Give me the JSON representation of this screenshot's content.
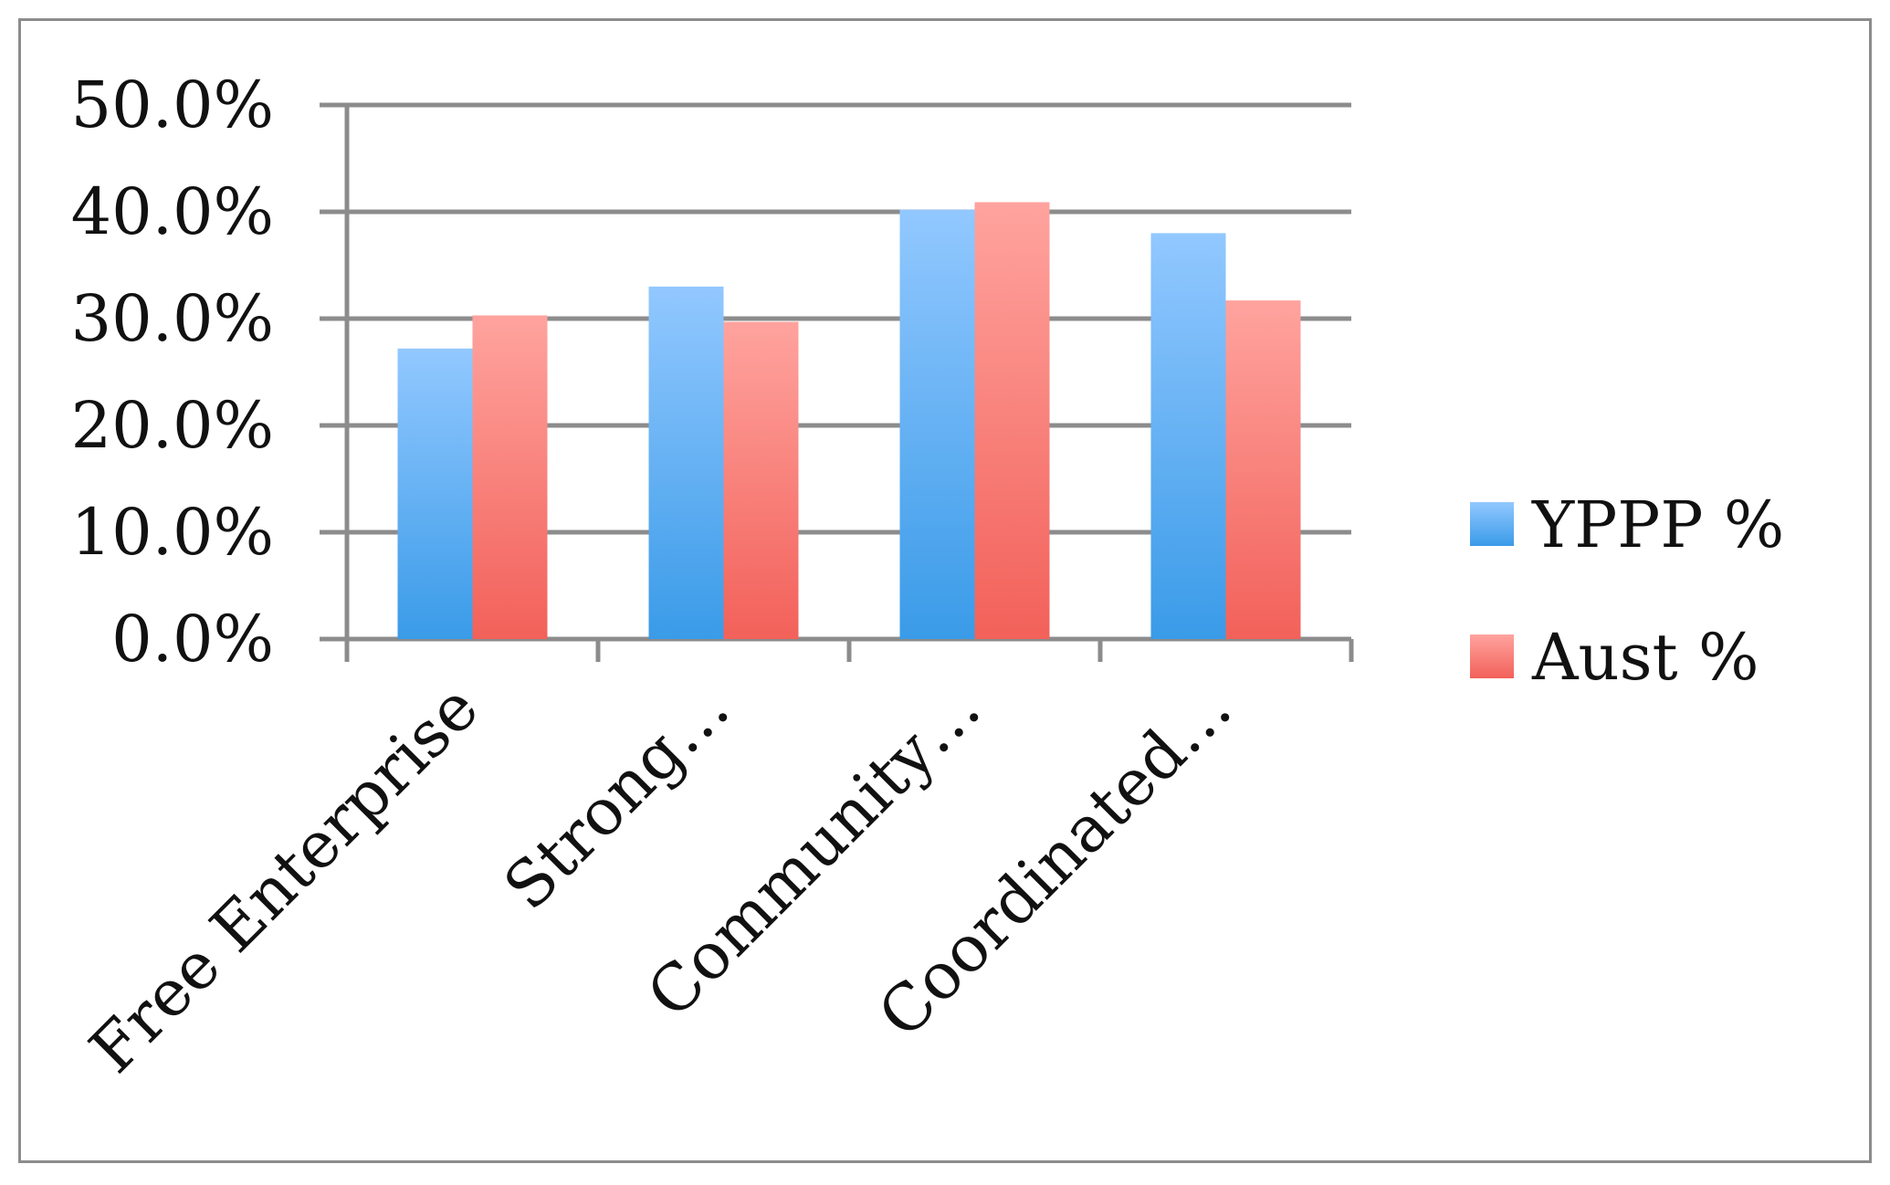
{
  "chart_data": {
    "type": "bar",
    "categories": [
      "Free Enterprise",
      "Strong…",
      "Community…",
      "Coordinated…"
    ],
    "series": [
      {
        "name": "YPPP %",
        "values": [
          27.2,
          33.0,
          40.2,
          38.0
        ],
        "color": "#3a9be8"
      },
      {
        "name": "Aust %",
        "values": [
          30.3,
          29.7,
          40.9,
          31.7
        ],
        "color": "#f2615a"
      }
    ],
    "ylim": [
      0,
      50
    ],
    "yticks": [
      0,
      10,
      20,
      30,
      40,
      50
    ],
    "ytick_labels": [
      "0.0%",
      "10.0%",
      "20.0%",
      "30.0%",
      "40.0%",
      "50.0%"
    ],
    "grid": true,
    "legend_position": "right"
  }
}
